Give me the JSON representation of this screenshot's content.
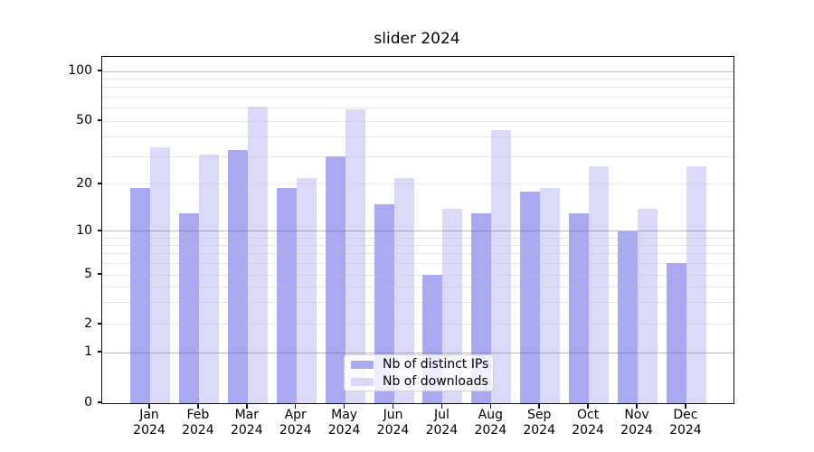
{
  "chart_data": {
    "type": "bar",
    "title": "slider 2024",
    "xlabel": "",
    "ylabel": "",
    "categories": [
      "Jan 2024",
      "Feb 2024",
      "Mar 2024",
      "Apr 2024",
      "May 2024",
      "Jun 2024",
      "Jul 2024",
      "Aug 2024",
      "Sep 2024",
      "Oct 2024",
      "Nov 2024",
      "Dec 2024"
    ],
    "series": [
      {
        "name": "Nb of distinct IPs",
        "color": "#a9a9f2",
        "values": [
          19,
          13,
          33,
          19,
          30,
          15,
          5,
          13,
          18,
          13,
          10,
          6
        ]
      },
      {
        "name": "Nb of downloads",
        "color": "#dadaf8",
        "values": [
          34,
          31,
          61,
          22,
          59,
          22,
          14,
          44,
          19,
          26,
          14,
          26
        ]
      }
    ],
    "yscale": "symlog",
    "ylim": [
      0,
      122
    ],
    "y_ticks": [
      0,
      1,
      2,
      5,
      10,
      20,
      50,
      100
    ],
    "y_tick_labels": [
      "0",
      "1",
      "2",
      "5",
      "10",
      "20",
      "50",
      "100"
    ],
    "grid": {
      "major": [
        1,
        10,
        100
      ],
      "minor": [
        2,
        3,
        4,
        5,
        6,
        7,
        8,
        9,
        20,
        30,
        40,
        50,
        60,
        70,
        80,
        90
      ]
    },
    "legend": {
      "location": "inside-bottom-center",
      "items": [
        "Nb of distinct IPs",
        "Nb of downloads"
      ]
    }
  }
}
